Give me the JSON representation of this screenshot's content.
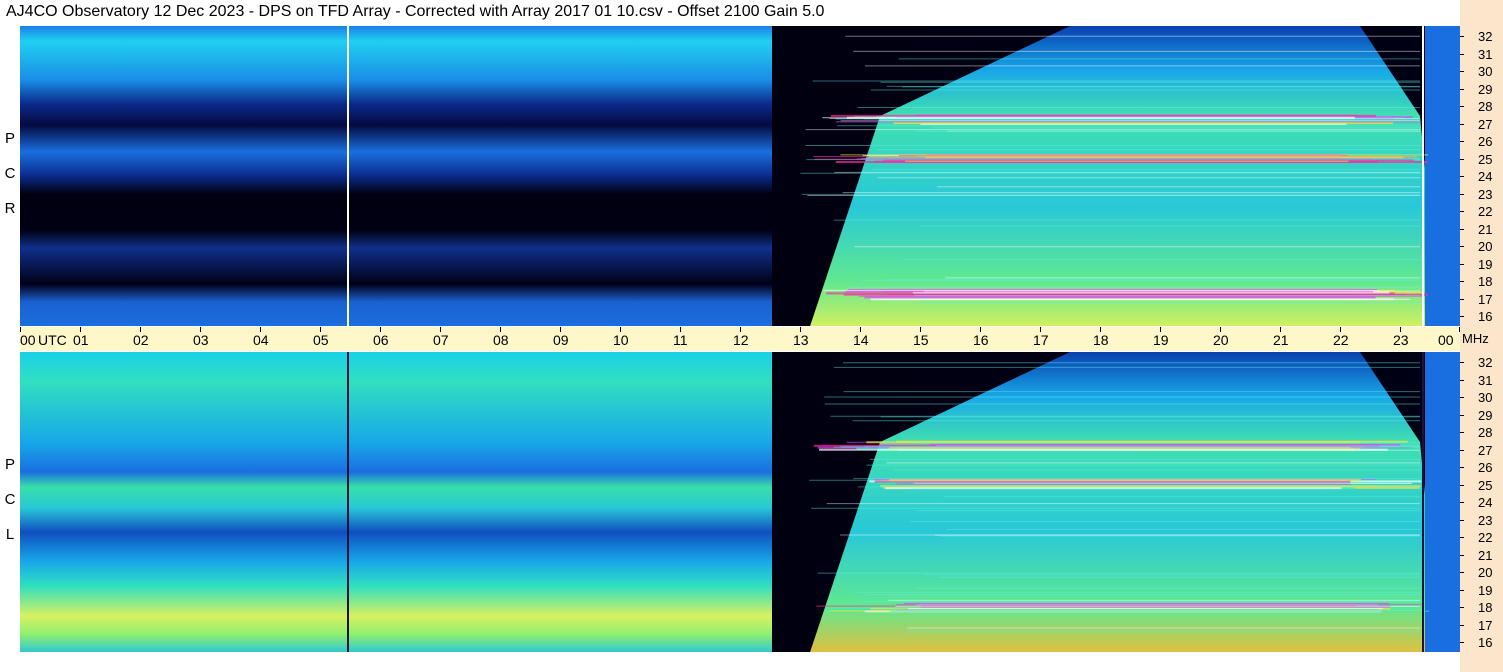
{
  "title": "AJ4CO Observatory  12 Dec 2023  -  DPS on TFD Array  -  Corrected with Array 2017 01 10.csv  -  Offset 2100  Gain 5.0",
  "upper_panel": {
    "polarization": "RCP",
    "letters": [
      "P",
      "C",
      "R"
    ]
  },
  "lower_panel": {
    "polarization": "LCP",
    "letters": [
      "P",
      "C",
      "L"
    ]
  },
  "x_axis": {
    "ticks": [
      "00",
      "01",
      "02",
      "03",
      "04",
      "05",
      "06",
      "07",
      "08",
      "09",
      "10",
      "11",
      "12",
      "13",
      "14",
      "15",
      "16",
      "17",
      "18",
      "19",
      "20",
      "21",
      "22",
      "23",
      "00"
    ],
    "unit_label": "UTC",
    "freq_unit": "MHz"
  },
  "y_axis": {
    "ticks": [
      "32",
      "31",
      "30",
      "29",
      "28",
      "27",
      "26",
      "25",
      "24",
      "23",
      "22",
      "21",
      "20",
      "19",
      "18",
      "17",
      "16"
    ]
  },
  "chart_data": {
    "type": "heatmap",
    "title": "AJ4CO Observatory  12 Dec 2023  -  DPS on TFD Array  -  Corrected with Array 2017 01 10.csv  -  Offset 2100  Gain 5.0",
    "xlabel": "UTC",
    "ylabel": "MHz",
    "xlim": [
      0,
      24
    ],
    "ylim": [
      16,
      32
    ],
    "colors": {
      "black": "#000010",
      "navy": "#0a1a6e",
      "blue": "#1a6fe0",
      "cyan": "#18c8f0",
      "green": "#3fe0a0",
      "yellow": "#d8f060",
      "magenta": "#ff2aa0",
      "white": "#ffffff"
    },
    "panels": [
      {
        "name": "RCP",
        "sun_up_utc": [
          12.5,
          23.4
        ],
        "bright_bands_mhz": [
          27.2,
          25.0,
          17.2
        ]
      },
      {
        "name": "LCP",
        "sun_up_utc": [
          12.5,
          23.4
        ],
        "bright_bands_mhz": [
          27.2,
          25.0,
          18.0
        ]
      }
    ]
  }
}
